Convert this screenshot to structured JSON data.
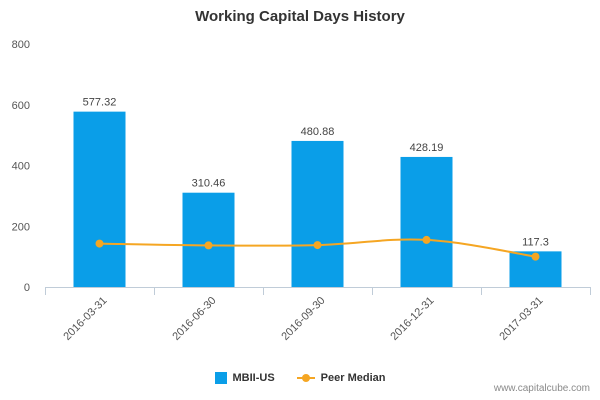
{
  "chart_data": {
    "type": "bar",
    "title": "Working Capital Days History",
    "categories": [
      "2016-03-31",
      "2016-06-30",
      "2016-09-30",
      "2016-12-31",
      "2017-03-31"
    ],
    "series": [
      {
        "name": "MBII-US",
        "kind": "bar",
        "color": "#0A9EE8",
        "values": [
          577.32,
          310.46,
          480.88,
          428.19,
          117.3
        ],
        "labels": [
          "577.32",
          "310.46",
          "480.88",
          "428.19",
          "117.3"
        ]
      },
      {
        "name": "Peer Median",
        "kind": "line",
        "color": "#F5A623",
        "values": [
          143,
          137,
          138,
          155,
          100
        ]
      }
    ],
    "ylim": [
      0,
      800
    ],
    "yticks": [
      0,
      200,
      400,
      600,
      800
    ],
    "grid": false,
    "legend": "bottom-center"
  },
  "watermark": "www.capitalcube.com"
}
